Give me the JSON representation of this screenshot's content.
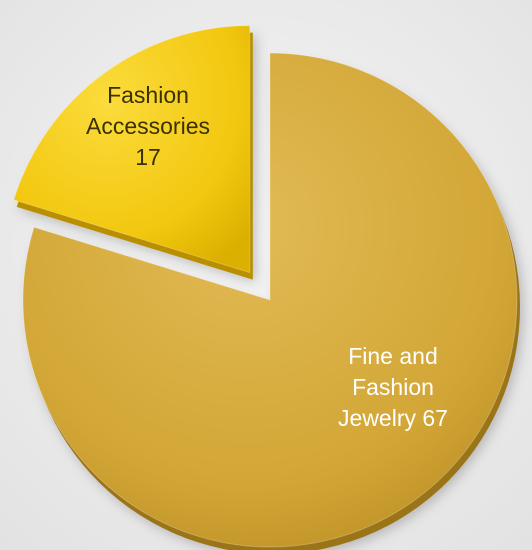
{
  "chart_data": {
    "type": "pie",
    "slices": [
      {
        "name": "Fine and Fashion Jewelry",
        "value": 67,
        "label_lines": [
          "Fine and",
          "Fashion",
          "Jewelry 67"
        ],
        "color": "#d4a93a",
        "label_color": "#ffffff"
      },
      {
        "name": "Fashion Accessories",
        "value": 17,
        "label_lines": [
          "Fashion",
          "Accessories",
          "17"
        ],
        "color": "#f2c70f",
        "label_color": "#3a3000"
      }
    ],
    "legend": "none",
    "style": "3d-exploded"
  }
}
